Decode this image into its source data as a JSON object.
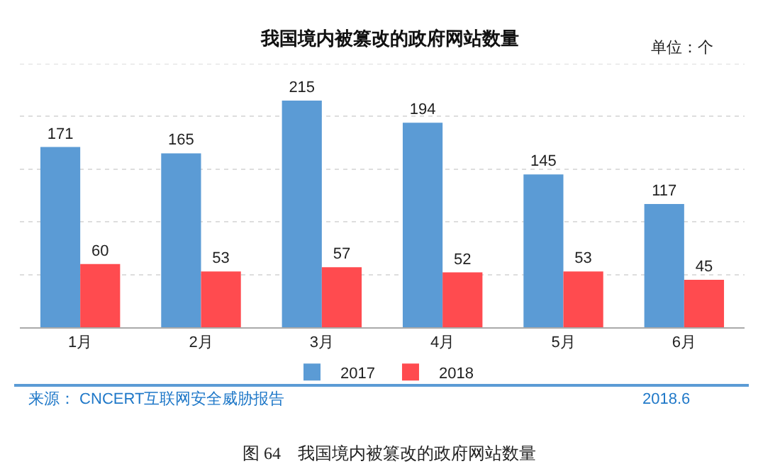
{
  "chart_data": {
    "type": "bar",
    "title": "我国境内被篡改的政府网站数量",
    "categories": [
      "1月",
      "2月",
      "3月",
      "4月",
      "5月",
      "6月"
    ],
    "series": [
      {
        "name": "2017",
        "color": "#5b9bd5",
        "values": [
          171,
          165,
          215,
          194,
          145,
          117
        ]
      },
      {
        "name": "2018",
        "color": "#ff4b4f",
        "values": [
          60,
          53,
          57,
          52,
          53,
          45
        ]
      }
    ],
    "ylim": [
      0,
      250
    ],
    "yticks": [
      {
        "value": 0,
        "label": null
      },
      {
        "value": 50,
        "label": null
      },
      {
        "value": 100,
        "label": null
      },
      {
        "value": 150,
        "label": null
      },
      {
        "value": 200,
        "label": null
      },
      {
        "value": 250,
        "label": null
      }
    ],
    "grid": "y",
    "legend": "bottom",
    "tick_labels": "x",
    "data_labels": true,
    "annotations": [
      "单位：个",
      "来源： CNCERT互联网安全威胁报告",
      "2018.6",
      "图 64　我国境内被篡改的政府网站数量"
    ]
  }
}
